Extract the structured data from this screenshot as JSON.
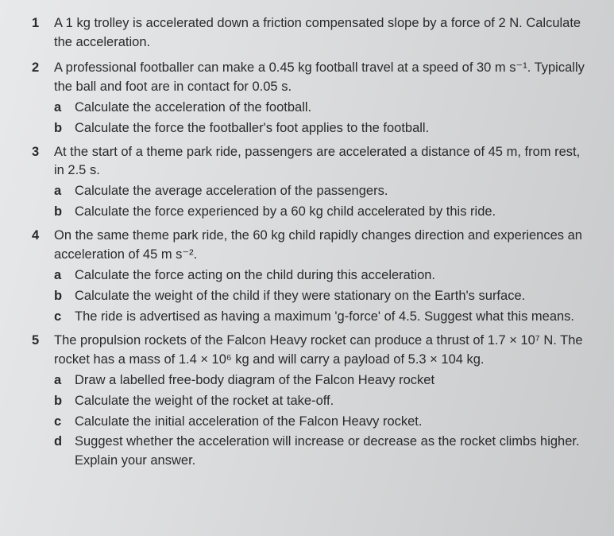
{
  "questions": [
    {
      "num": "1",
      "intro": "A 1 kg trolley is accelerated down a friction compensated slope by a force of 2 N. Calculate the acceleration.",
      "subs": []
    },
    {
      "num": "2",
      "intro": "A professional footballer can make a 0.45 kg football travel at a speed of 30 m s⁻¹. Typically the ball and foot are in contact for 0.05 s.",
      "subs": [
        {
          "letter": "a",
          "text": "Calculate the acceleration of the football."
        },
        {
          "letter": "b",
          "text": "Calculate the force the footballer's foot applies to the football."
        }
      ]
    },
    {
      "num": "3",
      "intro": "At the start of a theme park ride, passengers are accelerated a distance of 45 m, from rest, in 2.5 s.",
      "subs": [
        {
          "letter": "a",
          "text": "Calculate the average acceleration of the passengers."
        },
        {
          "letter": "b",
          "text": "Calculate the force experienced by a 60 kg child accelerated by this ride."
        }
      ]
    },
    {
      "num": "4",
      "intro": "On the same theme park ride, the 60 kg child rapidly changes direction and experiences an acceleration of 45 m s⁻².",
      "subs": [
        {
          "letter": "a",
          "text": "Calculate the force acting on the child during this acceleration."
        },
        {
          "letter": "b",
          "text": "Calculate the weight of the child if they were stationary on the Earth's surface."
        },
        {
          "letter": "c",
          "text": "The ride is advertised as having a maximum 'g-force' of 4.5. Suggest what this means."
        }
      ]
    },
    {
      "num": "5",
      "intro": "The propulsion rockets of the Falcon Heavy rocket can produce a thrust of 1.7 × 10⁷ N. The rocket has a mass of 1.4 × 10⁶ kg and will carry a payload of 5.3 × 104 kg.",
      "subs": [
        {
          "letter": "a",
          "text": "Draw a labelled free-body diagram of the Falcon Heavy rocket"
        },
        {
          "letter": "b",
          "text": "Calculate the weight of the rocket at take-off."
        },
        {
          "letter": "c",
          "text": "Calculate the initial acceleration of the Falcon Heavy rocket."
        },
        {
          "letter": "d",
          "text": "Suggest whether the acceleration will increase or decrease as the rocket climbs higher. Explain your answer."
        }
      ]
    }
  ]
}
